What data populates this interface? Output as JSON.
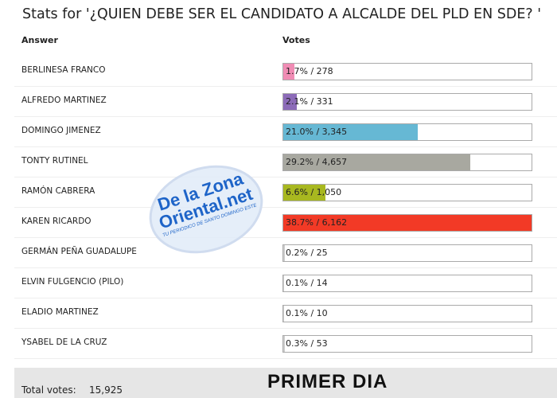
{
  "title": "Stats for '¿QUIEN DEBE SER EL CANDIDATO A ALCALDE DEL PLD EN SDE? '",
  "headers": {
    "answer": "Answer",
    "votes": "Votes"
  },
  "rows": [
    {
      "answer": "BERLINESA FRANCO",
      "percent": 1.7,
      "label": "1.7% / 278",
      "color": "#f08cb4"
    },
    {
      "answer": "ALFREDO MARTINEZ",
      "percent": 2.1,
      "label": "2.1% / 331",
      "color": "#8c6bb8"
    },
    {
      "answer": "DOMINGO JIMENEZ",
      "percent": 21.0,
      "label": "21.0% / 3,345",
      "color": "#66b8d4"
    },
    {
      "answer": "TONTY RUTINEL",
      "percent": 29.2,
      "label": "29.2% / 4,657",
      "color": "#a8a8a0"
    },
    {
      "answer": "RAMÓN CABRERA",
      "percent": 6.6,
      "label": "6.6% / 1,050",
      "color": "#a8b820"
    },
    {
      "answer": "KAREN RICARDO",
      "percent": 38.7,
      "label": "38.7% / 6,162",
      "color": "#f23a26"
    },
    {
      "answer": "GERMÁN PEÑA GUADALUPE",
      "percent": 0.2,
      "label": "0.2% / 25",
      "color": "#cccccc"
    },
    {
      "answer": "ELVIN FULGENCIO (PILO)",
      "percent": 0.1,
      "label": "0.1% / 14",
      "color": "#cccccc"
    },
    {
      "answer": "ELADIO MARTINEZ",
      "percent": 0.1,
      "label": "0.1% / 10",
      "color": "#cccccc"
    },
    {
      "answer": "YSABEL DE LA CRUZ",
      "percent": 0.3,
      "label": "0.3% / 53",
      "color": "#cccccc"
    }
  ],
  "footer": {
    "total_label": "Total votes:",
    "total_value": "15,925",
    "banner": "PRIMER DIA"
  },
  "watermark": {
    "line1": "De la Zona",
    "line2": "Oriental.net",
    "tagline": "TU PERIODICO DE SANTO DOMINGO ESTE"
  }
}
